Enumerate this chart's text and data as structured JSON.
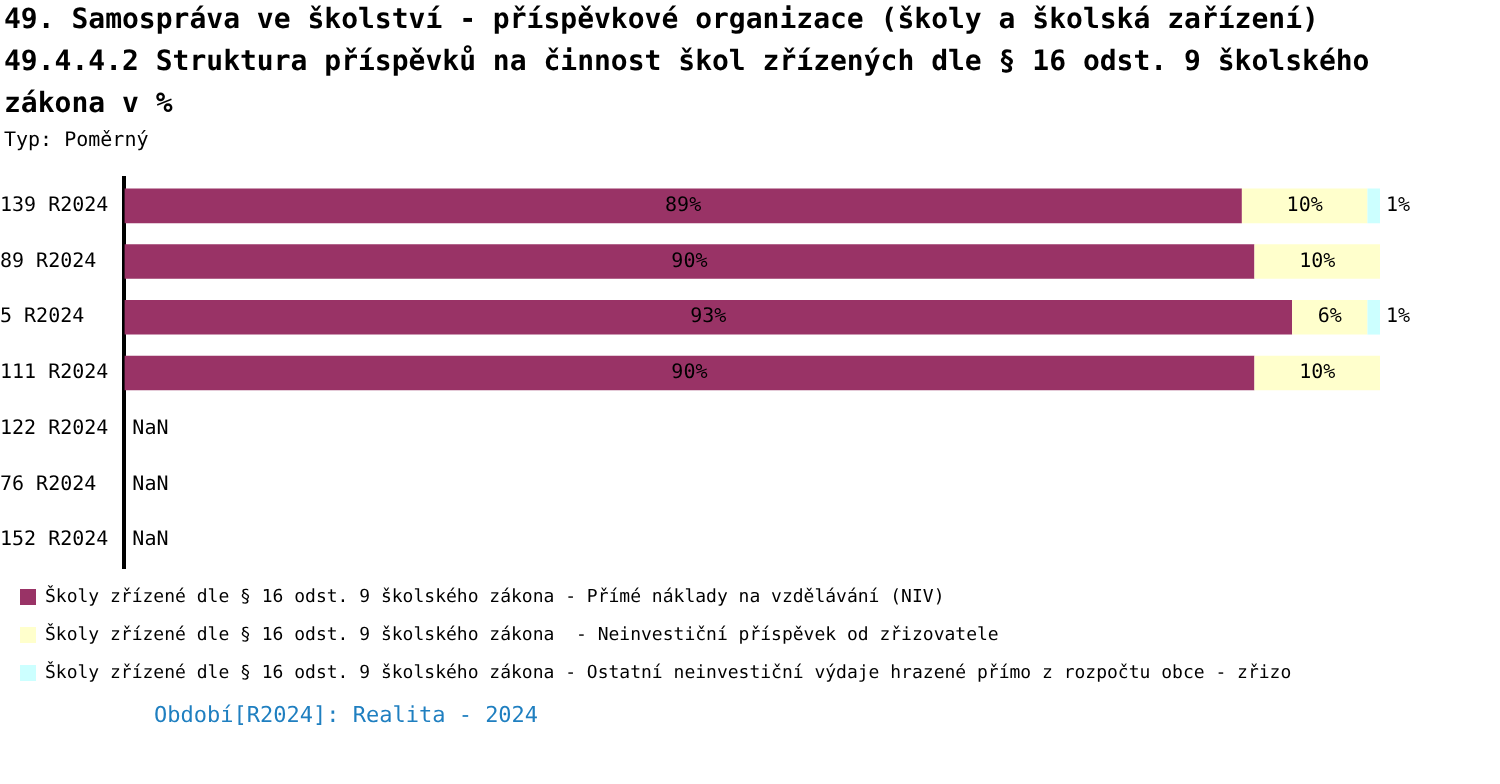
{
  "chart_data": {
    "type": "bar",
    "orientation": "horizontal",
    "stacked": true,
    "title": "49. Samospráva ve školství - příspěvkové organizace (školy a školská zařízení)",
    "subtitle": "49.4.4.2 Struktura příspěvků na činnost škol zřízených dle § 16 odst. 9 školského zákona v %",
    "annotations": [
      "Typ: Poměrný",
      "Období[R2024]: Realita - 2024"
    ],
    "categories": [
      "139 R2024",
      "89 R2024",
      "5 R2024",
      "111 R2024",
      "122 R2024",
      "76 R2024",
      "152 R2024"
    ],
    "xlim": [
      0,
      100
    ],
    "tick_labels": "y",
    "legend": "bottom",
    "series": [
      {
        "name": "Školy zřízené dle § 16 odst. 9 školského zákona - Přímé náklady na vzdělávání (NIV)",
        "color": "#993366",
        "values": [
          89,
          90,
          93,
          90,
          null,
          null,
          null
        ],
        "value_labels": [
          "89%",
          "90%",
          "93%",
          "90%",
          "NaN",
          "NaN",
          "NaN"
        ]
      },
      {
        "name": "Školy zřízené dle § 16 odst. 9 školského zákona  - Neinvestiční příspěvek od zřizovatele",
        "color": "#ffffcc",
        "values": [
          10,
          10,
          6,
          10,
          null,
          null,
          null
        ],
        "value_labels": [
          "10%",
          "10%",
          "6%",
          "10%",
          null,
          null,
          null
        ]
      },
      {
        "name": "Školy zřízené dle § 16 odst. 9 školského zákona - Ostatní neinvestiční výdaje hrazené přímo z rozpočtu obce - zřizo",
        "color": "#ccffff",
        "values": [
          1,
          null,
          1,
          null,
          null,
          null,
          null
        ],
        "value_labels": [
          "1%",
          null,
          "1%",
          null,
          null,
          null,
          null
        ]
      }
    ]
  }
}
